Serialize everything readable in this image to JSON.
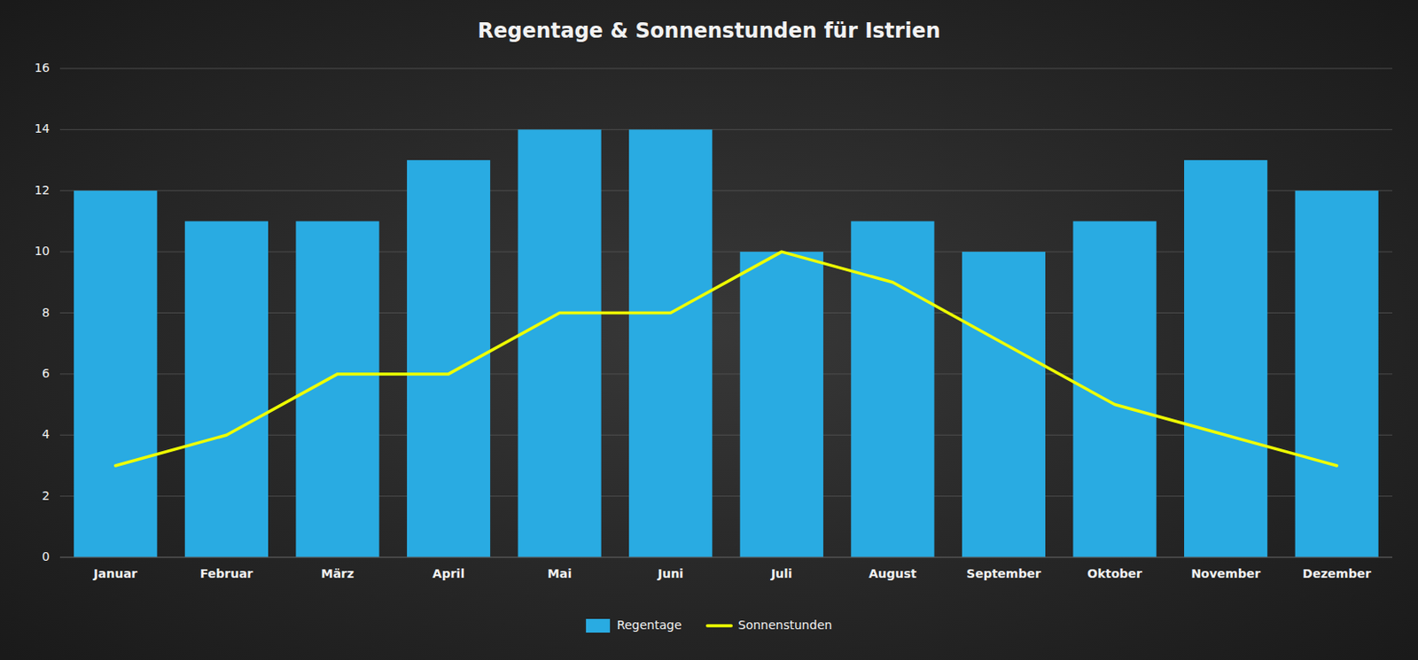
{
  "chart_data": {
    "type": "bar",
    "title": "Regentage & Sonnenstunden für Istrien",
    "categories": [
      "Januar",
      "Februar",
      "März",
      "April",
      "Mai",
      "Juni",
      "Juli",
      "August",
      "September",
      "Oktober",
      "November",
      "Dezember"
    ],
    "series": [
      {
        "name": "Regentage",
        "type": "bar",
        "color": "#29ABE2",
        "values": [
          12,
          11,
          11,
          13,
          14,
          14,
          10,
          11,
          10,
          11,
          13,
          12
        ]
      },
      {
        "name": "Sonnenstunden",
        "type": "line",
        "color": "#EEFF00",
        "values": [
          3,
          4,
          6,
          6,
          8,
          8,
          10,
          9,
          7,
          5,
          4,
          3
        ]
      }
    ],
    "ylim": [
      0,
      16
    ],
    "yticks": [
      0,
      2,
      4,
      6,
      8,
      10,
      12,
      14,
      16
    ],
    "grid": true,
    "legend": "bottom"
  }
}
